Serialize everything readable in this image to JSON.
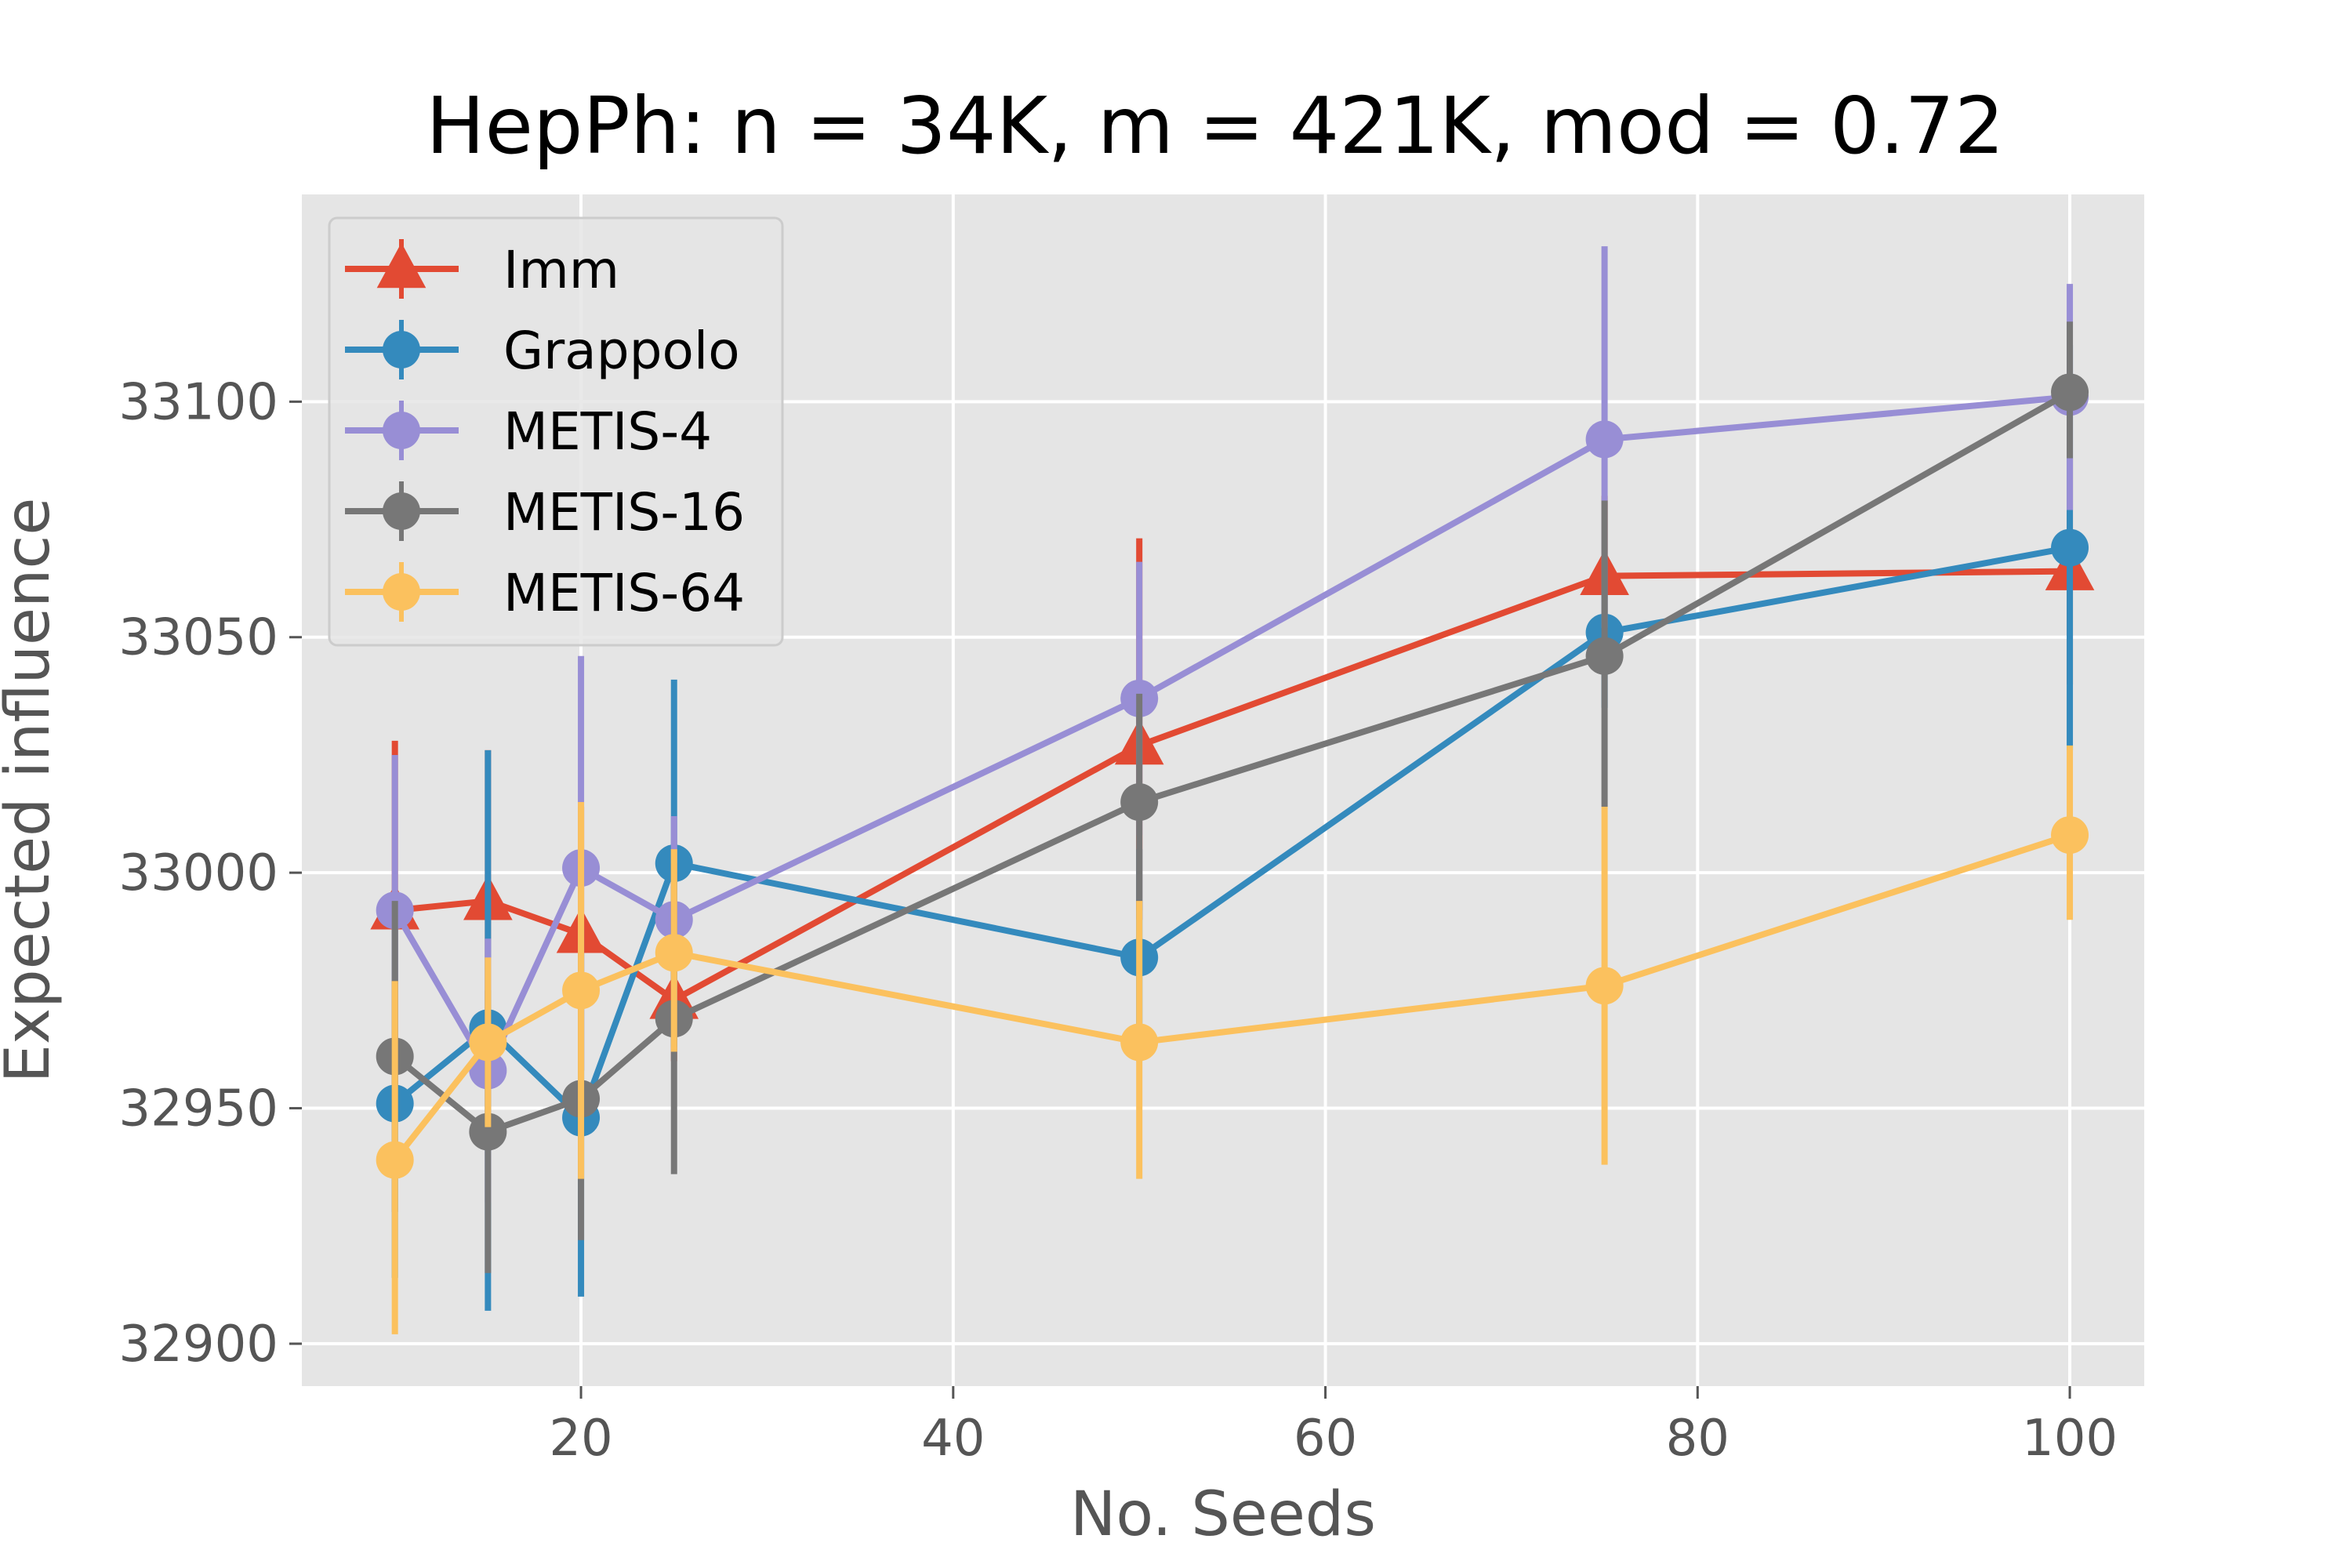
{
  "chart_data": {
    "type": "line",
    "title": "HepPh: n = 34K, m = 421K, mod = 0.72",
    "xlabel": "No. Seeds",
    "ylabel": "Expected influence",
    "xlim": [
      5,
      104
    ],
    "ylim": [
      32891,
      33144
    ],
    "xticks": [
      20,
      40,
      60,
      80,
      100
    ],
    "yticks": [
      32900,
      32950,
      33000,
      33050,
      33100
    ],
    "grid": true,
    "legend_position": "top-left",
    "x": [
      10,
      15,
      20,
      25,
      50,
      75,
      100
    ],
    "series": [
      {
        "name": "Imm",
        "color": "#E24A33",
        "marker": "triangle",
        "values": [
          32992,
          32994,
          32987,
          32973,
          33027,
          33063,
          33064
        ],
        "err_low": [
          32955,
          32962,
          32958,
          32960,
          32990,
          33045,
          33040
        ],
        "err_high": [
          33028,
          33026,
          33014,
          32988,
          33071,
          33080,
          33088
        ]
      },
      {
        "name": "Grappolo",
        "color": "#348ABD",
        "marker": "circle",
        "values": [
          32951,
          32967,
          32948,
          33002,
          32982,
          33051,
          33069
        ],
        "err_low": [
          32914,
          32907,
          32910,
          32963,
          32960,
          33035,
          33026
        ],
        "err_high": [
          32988,
          33026,
          32988,
          33041,
          33005,
          33066,
          33112
        ]
      },
      {
        "name": "METIS-4",
        "color": "#988ED5",
        "marker": "circle",
        "values": [
          32992,
          32958,
          33001,
          32990,
          33037,
          33092,
          33101
        ],
        "err_low": [
          32960,
          32930,
          32958,
          32970,
          33008,
          33052,
          33077
        ],
        "err_high": [
          33025,
          32986,
          33046,
          33012,
          33066,
          33133,
          33125
        ]
      },
      {
        "name": "METIS-16",
        "color": "#777777",
        "marker": "circle",
        "values": [
          32961,
          32945,
          32952,
          32969,
          33015,
          33046,
          33102
        ],
        "err_low": [
          32928,
          32915,
          32922,
          32936,
          32992,
          33014,
          33088
        ],
        "err_high": [
          32994,
          32975,
          32983,
          33002,
          33038,
          33079,
          33117
        ]
      },
      {
        "name": "METIS-64",
        "color": "#FBC15E",
        "marker": "circle",
        "values": [
          32939,
          32964,
          32975,
          32983,
          32964,
          32976,
          33008
        ],
        "err_low": [
          32902,
          32946,
          32935,
          32962,
          32935,
          32938,
          32990
        ],
        "err_high": [
          32977,
          32982,
          33015,
          33005,
          32994,
          33014,
          33027
        ]
      }
    ]
  }
}
